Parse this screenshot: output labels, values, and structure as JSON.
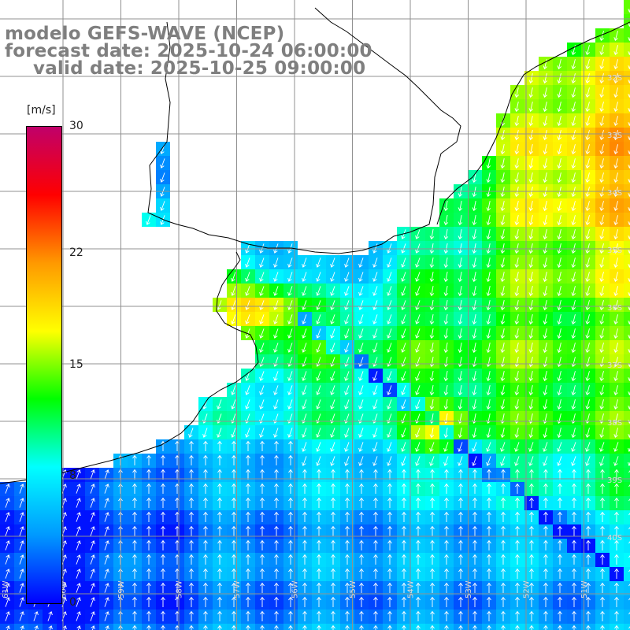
{
  "header": {
    "line1": "modelo GEFS-WAVE (NCEP)",
    "line2": "forecast date: 2025-10-24 06:00:00",
    "line3": "valid date: 2025-10-25 09:00:00"
  },
  "colorbar": {
    "unit": "[m/s]",
    "min": 0,
    "max": 30,
    "ticks": [
      "30",
      "22",
      "15",
      "8",
      "0"
    ],
    "tick_values": [
      30,
      22,
      15,
      8,
      0
    ],
    "colors": [
      "#0000ff",
      "#0099ff",
      "#00ffff",
      "#00ff00",
      "#ffff00",
      "#ff9900",
      "#ff0000",
      "#c0006a"
    ]
  },
  "map": {
    "variable": "wind speed",
    "lat_labels": [
      "32S",
      "33S",
      "34S",
      "35S",
      "36S",
      "37S",
      "38S",
      "39S",
      "40S"
    ],
    "lon_labels": [
      "61W",
      "60W",
      "59W",
      "58W",
      "57W",
      "56W",
      "55W",
      "54W",
      "53W",
      "52W",
      "51W"
    ],
    "land_color": "#ffffff",
    "grid_color": "#909090",
    "coast_color": "#000000"
  }
}
